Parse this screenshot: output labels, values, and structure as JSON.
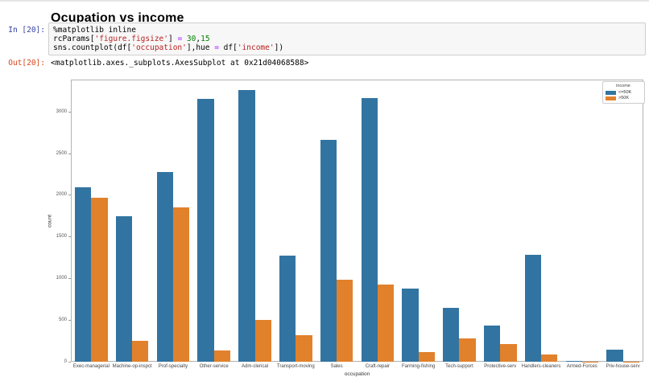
{
  "notebook": {
    "page_title": "Ocupation vs income",
    "input_prompt": "In [20]:",
    "output_prompt": "Out[20]:",
    "output_text": "<matplotlib.axes._subplots.AxesSubplot at 0x21d04068588>",
    "code_lines": [
      [
        {
          "text": "%matplotlib inline",
          "style": "plain"
        }
      ],
      [
        {
          "text": "rcParams[",
          "style": "plain"
        },
        {
          "text": "'figure.figsize'",
          "style": "string"
        },
        {
          "text": "] ",
          "style": "plain"
        },
        {
          "text": "=",
          "style": "op"
        },
        {
          "text": " ",
          "style": "plain"
        },
        {
          "text": "30",
          "style": "num"
        },
        {
          "text": ",",
          "style": "plain"
        },
        {
          "text": "15",
          "style": "num"
        }
      ],
      [
        {
          "text": "sns.countplot(df[",
          "style": "plain"
        },
        {
          "text": "'occupation'",
          "style": "string"
        },
        {
          "text": "],hue ",
          "style": "plain"
        },
        {
          "text": "=",
          "style": "op"
        },
        {
          "text": " df[",
          "style": "plain"
        },
        {
          "text": "'income'",
          "style": "string"
        },
        {
          "text": "])",
          "style": "plain"
        }
      ]
    ]
  },
  "chart_data": {
    "type": "bar",
    "title": "",
    "xlabel": "occupation",
    "ylabel": "count",
    "ylim": [
      0,
      3390
    ],
    "yticks": [
      0,
      500,
      1000,
      1500,
      2000,
      2500,
      3000
    ],
    "grid": false,
    "legend_title": "income",
    "legend_position": "upper right",
    "categories": [
      "Exec-managerial",
      "Machine-op-inspct",
      "Prof-specialty",
      "Other-service",
      "Adm-clerical",
      "Transport-moving",
      "Sales",
      "Craft-repair",
      "Farming-fishing",
      "Tech-support",
      "Protective-serv",
      "Handlers-cleaners",
      "Armed-Forces",
      "Priv-house-serv"
    ],
    "series": [
      {
        "name": "<=50K",
        "color": "#3274a1",
        "values": [
          2098,
          1752,
          2281,
          3158,
          3263,
          1277,
          2667,
          3170,
          879,
          645,
          438,
          1284,
          8,
          148
        ]
      },
      {
        "name": ">50K",
        "color": "#e1812c",
        "values": [
          1968,
          250,
          1859,
          137,
          507,
          320,
          983,
          929,
          115,
          283,
          211,
          86,
          1,
          1
        ]
      }
    ]
  }
}
